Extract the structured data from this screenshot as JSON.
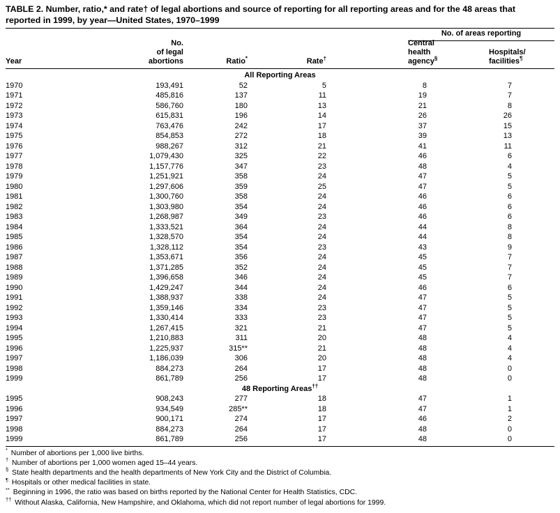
{
  "title_lines": [
    "TABLE 2. Number, ratio,* and rate† of legal abortions and source of reporting for all reporting areas and for the 48 areas that",
    "reported in 1999, by year—United States, 1970–1999"
  ],
  "header": {
    "areas_reporting_group": "No. of areas reporting",
    "year": "Year",
    "abortions_lines": [
      "No.",
      "of legal",
      "abortions"
    ],
    "ratio": "Ratio",
    "ratio_sup": "*",
    "rate": "Rate",
    "rate_sup": "†",
    "central_lines": [
      "Central",
      "health"
    ],
    "central_last": "agency",
    "central_sup": "§",
    "hospitals_first": "Hospitals/",
    "hospitals_last": "facilities",
    "hospitals_sup": "¶"
  },
  "sections": [
    {
      "label": "All Reporting Areas",
      "label_sup": "",
      "rows": [
        [
          "1970",
          "193,491",
          "52",
          "5",
          "8",
          "7"
        ],
        [
          "1971",
          "485,816",
          "137",
          "11",
          "19",
          "7"
        ],
        [
          "1972",
          "586,760",
          "180",
          "13",
          "21",
          "8"
        ],
        [
          "1973",
          "615,831",
          "196",
          "14",
          "26",
          "26"
        ],
        [
          "1974",
          "763,476",
          "242",
          "17",
          "37",
          "15"
        ],
        [
          "1975",
          "854,853",
          "272",
          "18",
          "39",
          "13"
        ],
        [
          "1976",
          "988,267",
          "312",
          "21",
          "41",
          "11"
        ],
        [
          "1977",
          "1,079,430",
          "325",
          "22",
          "46",
          "6"
        ],
        [
          "1978",
          "1,157,776",
          "347",
          "23",
          "48",
          "4"
        ],
        [
          "1979",
          "1,251,921",
          "358",
          "24",
          "47",
          "5"
        ],
        [
          "1980",
          "1,297,606",
          "359",
          "25",
          "47",
          "5"
        ],
        [
          "1981",
          "1,300,760",
          "358",
          "24",
          "46",
          "6"
        ],
        [
          "1982",
          "1,303,980",
          "354",
          "24",
          "46",
          "6"
        ],
        [
          "1983",
          "1,268,987",
          "349",
          "23",
          "46",
          "6"
        ],
        [
          "1984",
          "1,333,521",
          "364",
          "24",
          "44",
          "8"
        ],
        [
          "1985",
          "1,328,570",
          "354",
          "24",
          "44",
          "8"
        ],
        [
          "1986",
          "1,328,112",
          "354",
          "23",
          "43",
          "9"
        ],
        [
          "1987",
          "1,353,671",
          "356",
          "24",
          "45",
          "7"
        ],
        [
          "1988",
          "1,371,285",
          "352",
          "24",
          "45",
          "7"
        ],
        [
          "1989",
          "1,396,658",
          "346",
          "24",
          "45",
          "7"
        ],
        [
          "1990",
          "1,429,247",
          "344",
          "24",
          "46",
          "6"
        ],
        [
          "1991",
          "1,388,937",
          "338",
          "24",
          "47",
          "5"
        ],
        [
          "1992",
          "1,359,146",
          "334",
          "23",
          "47",
          "5"
        ],
        [
          "1993",
          "1,330,414",
          "333",
          "23",
          "47",
          "5"
        ],
        [
          "1994",
          "1,267,415",
          "321",
          "21",
          "47",
          "5"
        ],
        [
          "1995",
          "1,210,883",
          "311",
          "20",
          "48",
          "4"
        ],
        [
          "1996",
          "1,225,937",
          "315**",
          "21",
          "48",
          "4"
        ],
        [
          "1997",
          "1,186,039",
          "306",
          "20",
          "48",
          "4"
        ],
        [
          "1998",
          "884,273",
          "264",
          "17",
          "48",
          "0"
        ],
        [
          "1999",
          "861,789",
          "256",
          "17",
          "48",
          "0"
        ]
      ]
    },
    {
      "label": "48 Reporting Areas",
      "label_sup": "††",
      "rows": [
        [
          "1995",
          "908,243",
          "277",
          "18",
          "47",
          "1"
        ],
        [
          "1996",
          "934,549",
          "285**",
          "18",
          "47",
          "1"
        ],
        [
          "1997",
          "900,171",
          "274",
          "17",
          "46",
          "2"
        ],
        [
          "1998",
          "884,273",
          "264",
          "17",
          "48",
          "0"
        ],
        [
          "1999",
          "861,789",
          "256",
          "17",
          "48",
          "0"
        ]
      ]
    }
  ],
  "footnotes": [
    {
      "sup": "*",
      "text": "Number of abortions per 1,000 live births."
    },
    {
      "sup": "†",
      "text": "Number of abortions per 1,000 women aged 15–44 years."
    },
    {
      "sup": "§",
      "text": "State health departments and the health departments of New York City and the District of Columbia."
    },
    {
      "sup": "¶",
      "text": "Hospitals or other medical facilities in state."
    },
    {
      "sup": "**",
      "text": "Beginning in 1996, the ratio was based on births reported by the National Center for Health Statistics, CDC."
    },
    {
      "sup": "††",
      "text": "Without Alaska, California, New Hampshire, and Oklahoma, which did not report number of legal abortions for 1999."
    }
  ]
}
